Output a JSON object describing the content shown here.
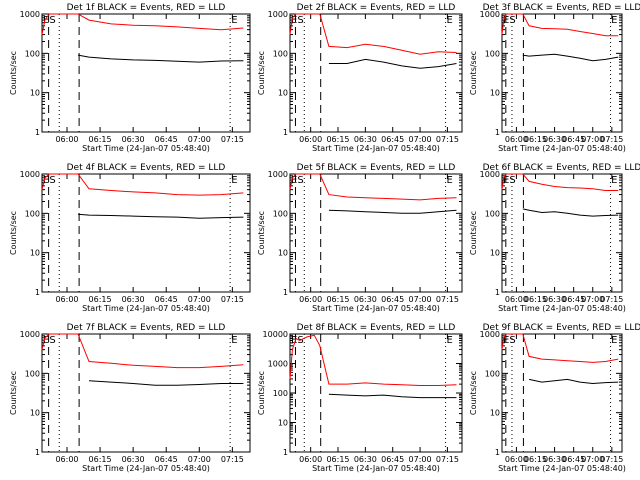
{
  "colors": {
    "events": "#000000",
    "lld": "#ff0000",
    "axes": "#000000",
    "background": "#ffffff"
  },
  "ylabel": "Counts/sec",
  "xlabel": "Start Time (24-Jan-07 05:48:40)",
  "x_tick_labels": [
    "06:00",
    "06:15",
    "06:30",
    "06:45",
    "07:00",
    "07:15"
  ],
  "y_tick_labels": [
    "1",
    "10",
    "100",
    "1000"
  ],
  "marker_labels": [
    "ES",
    "E"
  ],
  "chart_data": [
    {
      "type": "line",
      "title": "Det 1f BLACK = Events, RED = LLD",
      "xlim": [
        "05:48:40",
        "07:23:00"
      ],
      "ylim": [
        1,
        1000
      ],
      "yscale": "log",
      "grid": false,
      "series": [
        {
          "name": "BLACK = Events",
          "x": [
            "06:05:00",
            "06:10",
            "06:20",
            "06:30",
            "06:40",
            "06:50",
            "07:00",
            "07:10",
            "07:20"
          ],
          "y": [
            90,
            80,
            72,
            68,
            66,
            63,
            60,
            64,
            65
          ]
        },
        {
          "name": "RED = LLD",
          "x": [
            "05:48:40",
            "05:50:00",
            "05:52:00",
            "05:54:00",
            "06:05",
            "06:10",
            "06:20",
            "06:30",
            "06:40",
            "06:50",
            "07:00",
            "07:10",
            "07:20"
          ],
          "y": [
            300,
            700,
            1000,
            1000,
            1000,
            700,
            560,
            520,
            500,
            470,
            430,
            400,
            440
          ]
        }
      ]
    },
    {
      "type": "line",
      "title": "Det 2f BLACK = Events, RED = LLD",
      "xlim": [
        "05:48:40",
        "07:23:00"
      ],
      "ylim": [
        1,
        1000
      ],
      "yscale": "log",
      "grid": false,
      "series": [
        {
          "name": "BLACK = Events",
          "x": [
            "06:10",
            "06:20",
            "06:30",
            "06:40",
            "06:50",
            "07:00",
            "07:10",
            "07:20"
          ],
          "y": [
            55,
            55,
            70,
            60,
            48,
            42,
            46,
            55
          ]
        },
        {
          "name": "RED = LLD",
          "x": [
            "05:48:40",
            "05:50:00",
            "05:52:00",
            "06:05",
            "06:10",
            "06:20",
            "06:30",
            "06:40",
            "06:50",
            "07:00",
            "07:10",
            "07:20"
          ],
          "y": [
            300,
            800,
            1000,
            1000,
            150,
            140,
            170,
            150,
            120,
            95,
            110,
            105
          ]
        }
      ]
    },
    {
      "type": "line",
      "title": "Det 3f BLACK = Events, RED = LLD",
      "xlim": [
        "05:48:40",
        "07:23:00"
      ],
      "ylim": [
        1,
        1000
      ],
      "yscale": "log",
      "grid": false,
      "series": [
        {
          "name": "BLACK = Events",
          "x": [
            "06:05",
            "06:10",
            "06:20",
            "06:30",
            "06:40",
            "06:50",
            "07:00",
            "07:10",
            "07:20"
          ],
          "y": [
            90,
            85,
            90,
            95,
            85,
            75,
            65,
            70,
            80
          ]
        },
        {
          "name": "RED = LLD",
          "x": [
            "05:48:40",
            "05:50:00",
            "05:52:00",
            "06:05",
            "06:10",
            "06:20",
            "06:30",
            "06:40",
            "06:50",
            "07:00",
            "07:10",
            "07:20"
          ],
          "y": [
            300,
            700,
            1000,
            1000,
            500,
            430,
            420,
            410,
            360,
            320,
            280,
            280
          ]
        }
      ]
    },
    {
      "type": "line",
      "title": "Det 4f BLACK = Events, RED = LLD",
      "xlim": [
        "05:48:40",
        "07:23:00"
      ],
      "ylim": [
        1,
        1000
      ],
      "yscale": "log",
      "grid": false,
      "series": [
        {
          "name": "BLACK = Events",
          "x": [
            "06:05",
            "06:10",
            "06:20",
            "06:30",
            "06:40",
            "06:50",
            "07:00",
            "07:10",
            "07:20"
          ],
          "y": [
            95,
            90,
            88,
            85,
            82,
            80,
            75,
            78,
            80
          ]
        },
        {
          "name": "RED = LLD",
          "x": [
            "05:48:40",
            "05:50:00",
            "05:52:00",
            "06:05",
            "06:10",
            "06:20",
            "06:30",
            "06:40",
            "06:50",
            "07:00",
            "07:10",
            "07:20"
          ],
          "y": [
            400,
            800,
            1000,
            1000,
            420,
            380,
            350,
            330,
            300,
            290,
            300,
            330
          ]
        }
      ]
    },
    {
      "type": "line",
      "title": "Det 5f BLACK = Events, RED = LLD",
      "xlim": [
        "05:48:40",
        "07:23:00"
      ],
      "ylim": [
        1,
        1000
      ],
      "yscale": "log",
      "grid": false,
      "series": [
        {
          "name": "BLACK = Events",
          "x": [
            "06:10",
            "06:20",
            "06:30",
            "06:40",
            "06:50",
            "07:00",
            "07:10",
            "07:20"
          ],
          "y": [
            120,
            115,
            110,
            105,
            100,
            100,
            110,
            120
          ]
        },
        {
          "name": "RED = LLD",
          "x": [
            "05:48:40",
            "05:50:00",
            "05:52:00",
            "06:05",
            "06:10",
            "06:20",
            "06:30",
            "06:40",
            "06:50",
            "07:00",
            "07:10",
            "07:20"
          ],
          "y": [
            400,
            800,
            1000,
            1000,
            300,
            260,
            250,
            240,
            230,
            220,
            240,
            250
          ]
        }
      ]
    },
    {
      "type": "line",
      "title": "Det 6f BLACK = Events, RED = LLD",
      "xlim": [
        "05:48:40",
        "07:23:00"
      ],
      "ylim": [
        1,
        1000
      ],
      "yscale": "log",
      "grid": false,
      "series": [
        {
          "name": "BLACK = Events",
          "x": [
            "06:05",
            "06:10",
            "06:20",
            "06:30",
            "06:40",
            "06:50",
            "07:00",
            "07:10",
            "07:20"
          ],
          "y": [
            130,
            120,
            105,
            110,
            100,
            90,
            85,
            88,
            90
          ]
        },
        {
          "name": "RED = LLD",
          "x": [
            "05:48:40",
            "05:50:00",
            "05:52:00",
            "06:05",
            "06:10",
            "06:20",
            "06:30",
            "06:40",
            "06:50",
            "07:00",
            "07:10",
            "07:20"
          ],
          "y": [
            400,
            800,
            1000,
            1000,
            650,
            550,
            480,
            450,
            440,
            420,
            380,
            380
          ]
        }
      ]
    },
    {
      "type": "line",
      "title": "Det 7f BLACK = Events, RED = LLD",
      "xlim": [
        "05:48:40",
        "07:23:00"
      ],
      "ylim": [
        1,
        1000
      ],
      "yscale": "log",
      "grid": false,
      "series": [
        {
          "name": "BLACK = Events",
          "x": [
            "06:10",
            "06:20",
            "06:30",
            "06:40",
            "06:50",
            "07:00",
            "07:10",
            "07:20"
          ],
          "y": [
            65,
            60,
            55,
            50,
            50,
            52,
            55,
            55
          ]
        },
        {
          "name": "RED = LLD",
          "x": [
            "05:48:40",
            "05:50:00",
            "05:52:00",
            "06:05",
            "06:10",
            "06:20",
            "06:30",
            "06:40",
            "06:50",
            "07:00",
            "07:10",
            "07:20"
          ],
          "y": [
            400,
            800,
            1000,
            1000,
            200,
            180,
            160,
            150,
            140,
            140,
            150,
            165
          ]
        }
      ]
    },
    {
      "type": "line",
      "title": "Det 8f BLACK = Events, RED = LLD",
      "xlim": [
        "05:48:40",
        "07:23:00"
      ],
      "ylim": [
        1,
        10000
      ],
      "yscale": "log",
      "grid": false,
      "series": [
        {
          "name": "BLACK = Events",
          "x": [
            "06:10",
            "06:20",
            "06:30",
            "06:40",
            "06:50",
            "07:00",
            "07:10",
            "07:20"
          ],
          "y": [
            90,
            85,
            80,
            85,
            75,
            70,
            70,
            70
          ]
        },
        {
          "name": "RED = LLD",
          "x": [
            "05:48:40",
            "05:50:00",
            "05:52:00",
            "05:54:00",
            "05:58:00",
            "06:02:00",
            "06:05",
            "06:10",
            "06:20",
            "06:30",
            "06:40",
            "06:50",
            "07:00",
            "07:10",
            "07:20"
          ],
          "y": [
            300,
            3000,
            7000,
            6000,
            8000,
            9000,
            4000,
            200,
            200,
            220,
            200,
            190,
            180,
            180,
            190
          ]
        }
      ]
    },
    {
      "type": "line",
      "title": "Det 9f BLACK = Events, RED = LLD",
      "xlim": [
        "05:48:40",
        "07:23:00"
      ],
      "ylim": [
        1,
        1000
      ],
      "yscale": "log",
      "grid": false,
      "series": [
        {
          "name": "BLACK = Events",
          "x": [
            "06:10",
            "06:20",
            "06:30",
            "06:40",
            "06:50",
            "07:00",
            "07:10",
            "07:20"
          ],
          "y": [
            70,
            60,
            65,
            70,
            60,
            55,
            58,
            60
          ]
        },
        {
          "name": "RED = LLD",
          "x": [
            "05:48:40",
            "05:50:00",
            "05:52:00",
            "06:05",
            "06:10",
            "06:20",
            "06:30",
            "06:40",
            "06:50",
            "07:00",
            "07:10",
            "07:20"
          ],
          "y": [
            400,
            800,
            1000,
            1000,
            270,
            230,
            220,
            210,
            200,
            190,
            200,
            230
          ]
        }
      ]
    }
  ]
}
